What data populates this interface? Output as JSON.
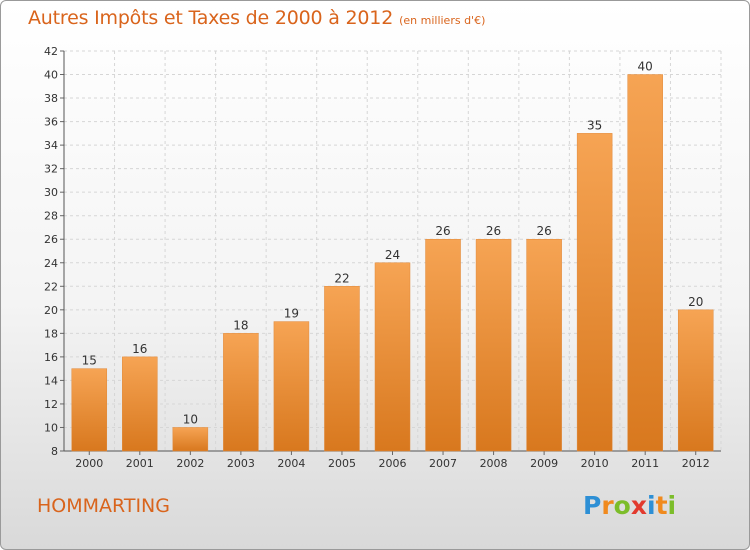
{
  "header": {
    "title": "Autres Impôts et Taxes de 2000 à 2012",
    "subtitle": "(en milliers d'€)"
  },
  "commune": "HOMMARTING",
  "logo": {
    "letters": [
      "P",
      "r",
      "o",
      "x",
      "i",
      "t",
      "i"
    ],
    "colors": [
      "#2d8fd5",
      "#f08a1e",
      "#7cbd2a",
      "#e23a2e",
      "#2d8fd5",
      "#f08a1e",
      "#7cbd2a"
    ]
  },
  "colors": {
    "accent": "#d9641c",
    "bar_light": "#f6a454",
    "bar_dark": "#d8781e"
  },
  "chart_data": {
    "type": "bar",
    "title": "Autres Impôts et Taxes de 2000 à 2012",
    "subtitle": "(en milliers d'€)",
    "categories": [
      "2000",
      "2001",
      "2002",
      "2003",
      "2004",
      "2005",
      "2006",
      "2007",
      "2008",
      "2009",
      "2010",
      "2011",
      "2012"
    ],
    "values": [
      15,
      16,
      10,
      18,
      19,
      22,
      24,
      26,
      26,
      26,
      35,
      40,
      20
    ],
    "ylim": [
      8,
      42
    ],
    "yticks": [
      8,
      10,
      12,
      14,
      16,
      18,
      20,
      22,
      24,
      26,
      28,
      30,
      32,
      34,
      36,
      38,
      40,
      42
    ],
    "grid": true,
    "data_labels": true
  }
}
